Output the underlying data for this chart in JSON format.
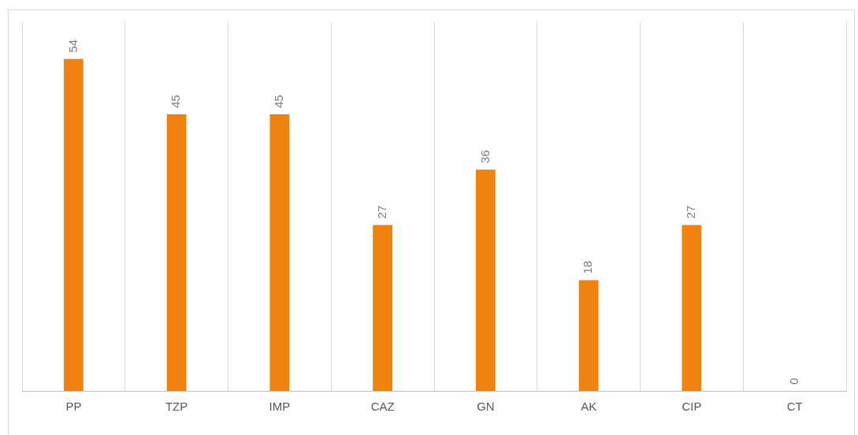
{
  "chart_data": {
    "type": "bar",
    "categories": [
      "PP",
      "TZP",
      "IMP",
      "CAZ",
      "GN",
      "AK",
      "CIP",
      "CT"
    ],
    "values": [
      54,
      45,
      45,
      27,
      36,
      18,
      27,
      0
    ],
    "color": "#f0820f",
    "data_labels": true,
    "grid": "x",
    "legend": false
  }
}
